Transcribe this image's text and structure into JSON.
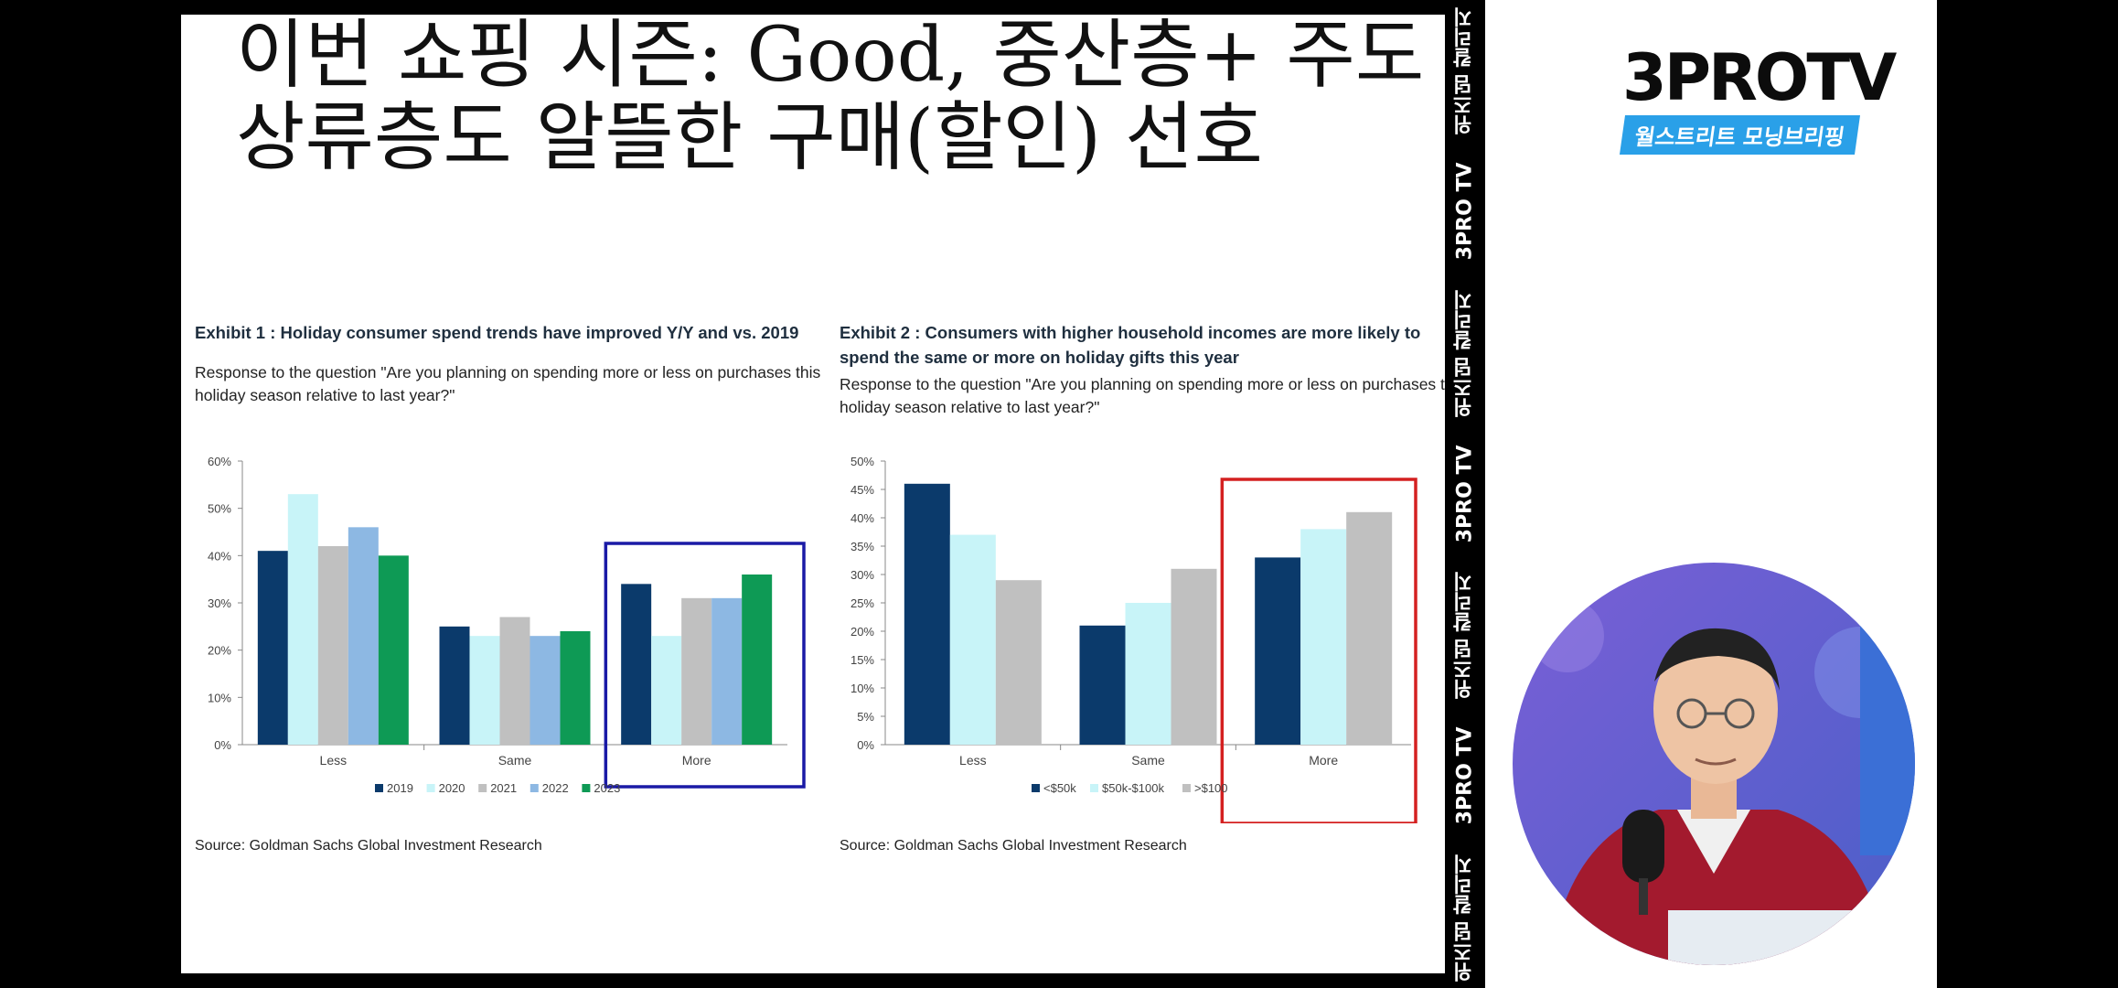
{
  "slide": {
    "title_line1": "이번 쇼핑 시즌: Good, 중산층+ 주도",
    "title_line2": "상류층도 알뜰한 구매(할인) 선호"
  },
  "exhibit1": {
    "heading": "Exhibit 1 : Holiday consumer spend trends have improved Y/Y and vs. 2019",
    "subtitle_line1": "Response to the question \"Are you planning on spending more or less on purchases this",
    "subtitle_line2": "holiday season relative to last year?\"",
    "source": "Source: Goldman Sachs Global Investment Research"
  },
  "exhibit2": {
    "heading_line1": "Exhibit 2 : Consumers with higher household incomes are more likely to",
    "heading_line2": "spend the same or more on holiday gifts this year",
    "subtitle_line1": "Response to the question \"Are you planning on spending more or less on purchases this",
    "subtitle_line2": "holiday season relative to last year?\"",
    "source": "Source: Goldman Sachs Global Investment Research"
  },
  "chart_data": [
    {
      "type": "bar",
      "categories": [
        "Less",
        "Same",
        "More"
      ],
      "ylim": [
        0,
        60
      ],
      "yticks": [
        "0%",
        "10%",
        "20%",
        "30%",
        "40%",
        "50%",
        "60%"
      ],
      "legend_position": "bottom",
      "highlight_category": "More",
      "highlight_color": "#1a1aa6",
      "series": [
        {
          "name": "2019",
          "color": "#0b3a6b",
          "values": [
            41,
            25,
            34
          ]
        },
        {
          "name": "2020",
          "color": "#c8f4f8",
          "values": [
            53,
            23,
            23
          ]
        },
        {
          "name": "2021",
          "color": "#c0c0c0",
          "values": [
            42,
            27,
            31
          ]
        },
        {
          "name": "2022",
          "color": "#8db8e3",
          "values": [
            46,
            23,
            31
          ]
        },
        {
          "name": "2023",
          "color": "#0e9a55",
          "values": [
            40,
            24,
            36
          ]
        }
      ]
    },
    {
      "type": "bar",
      "categories": [
        "Less",
        "Same",
        "More"
      ],
      "ylim": [
        0,
        50
      ],
      "yticks": [
        "0%",
        "5%",
        "10%",
        "15%",
        "20%",
        "25%",
        "30%",
        "35%",
        "40%",
        "45%",
        "50%"
      ],
      "legend_position": "bottom",
      "highlight_category": "More",
      "highlight_color": "#d42020",
      "series": [
        {
          "name": "<$50k",
          "color": "#0b3a6b",
          "values": [
            46,
            21,
            33
          ]
        },
        {
          "name": "$50k-$100k",
          "color": "#c8f4f8",
          "values": [
            37,
            25,
            38
          ]
        },
        {
          "name": ">$100",
          "color": "#c0c0c0",
          "values": [
            29,
            31,
            41
          ]
        }
      ]
    }
  ],
  "side_strip": {
    "items": [
      "위즈덤 칼리지",
      "3PRO TV",
      "위즈덤 칼리지",
      "3PRO TV",
      "위즈덤 칼리지",
      "3PRO TV",
      "위즈덤 칼리지"
    ]
  },
  "brand": {
    "logo": "3PROTV",
    "tagline": "월스트리트 모닝브리핑"
  }
}
